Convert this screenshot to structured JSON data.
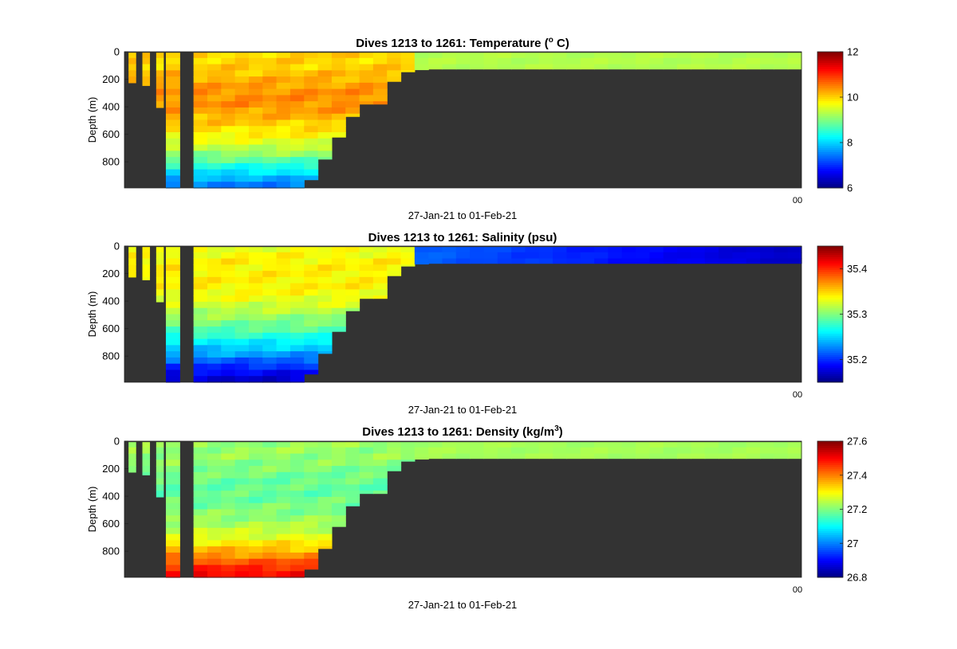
{
  "figure": {
    "background_color": "#ffffff",
    "mask_color": "#333333",
    "colormap": "jet"
  },
  "chart_data": [
    {
      "type": "heatmap",
      "title": "Dives 1213 to 1261: Temperature (",
      "title_superscript": "o",
      "title_after_superscript": " C)",
      "ylabel": "Depth (m)",
      "xlabel": "27-Jan-21 to 01-Feb-21",
      "x_tick_overlap_text": "00",
      "yticks": [
        "0",
        "200",
        "400",
        "600",
        "800"
      ],
      "ylim": [
        0,
        990
      ],
      "y_reversed": true,
      "clim": [
        6,
        12
      ],
      "colorbar_ticks": [
        "6",
        "8",
        "10",
        "12"
      ],
      "colorbar_tick_values": [
        6,
        8,
        10,
        12
      ],
      "max_depth_by_dive": [
        225,
        245,
        405,
        990,
        990,
        990,
        990,
        990,
        990,
        990,
        990,
        990,
        990,
        930,
        780,
        620,
        470,
        380,
        380,
        215,
        145,
        130,
        125,
        125,
        125,
        125,
        125,
        125,
        125,
        125,
        125,
        125,
        125,
        125,
        125,
        125,
        125,
        125,
        125,
        125,
        125,
        125,
        125,
        125,
        125,
        125,
        125,
        125,
        125
      ],
      "gap_dives": [
        4
      ],
      "profile_depths": [
        0,
        100,
        200,
        300,
        400,
        500,
        600,
        700,
        800,
        900,
        990
      ],
      "representative_profile_upper_warm_zone": [
        10.0,
        10.0,
        10.2,
        10.4,
        10.4,
        10.1,
        9.8,
        9.4,
        8.7,
        7.9,
        7.4
      ],
      "shelf_surface_layer_value": 9.3
    },
    {
      "type": "heatmap",
      "title": "Dives 1213 to 1261: Salinity (psu)",
      "ylabel": "Depth (m)",
      "xlabel": "27-Jan-21 to 01-Feb-21",
      "x_tick_overlap_text": "00",
      "yticks": [
        "0",
        "200",
        "400",
        "600",
        "800"
      ],
      "ylim": [
        0,
        990
      ],
      "y_reversed": true,
      "clim": [
        35.15,
        35.45
      ],
      "colorbar_ticks": [
        "35.2",
        "35.3",
        "35.4"
      ],
      "colorbar_tick_values": [
        35.2,
        35.3,
        35.4
      ],
      "profile_depths": [
        0,
        100,
        200,
        300,
        400,
        500,
        600,
        700,
        800,
        900,
        990
      ],
      "representative_profile": [
        35.33,
        35.34,
        35.34,
        35.34,
        35.33,
        35.31,
        35.29,
        35.26,
        35.23,
        35.19,
        35.17
      ],
      "shelf_surface_layer_range": [
        35.22,
        35.17
      ]
    },
    {
      "type": "heatmap",
      "title": "Dives 1213 to 1261: Density (kg/m",
      "title_superscript": "3",
      "title_after_superscript": ")",
      "ylabel": "Depth (m)",
      "xlabel": "27-Jan-21 to 01-Feb-21",
      "x_tick_overlap_text": "00",
      "yticks": [
        "0",
        "200",
        "400",
        "600",
        "800"
      ],
      "ylim": [
        0,
        990
      ],
      "y_reversed": true,
      "clim": [
        26.8,
        27.6
      ],
      "colorbar_ticks": [
        "26.8",
        "27",
        "27.2",
        "27.4",
        "27.6"
      ],
      "colorbar_tick_values": [
        26.8,
        27.0,
        27.2,
        27.4,
        27.6
      ],
      "profile_depths": [
        0,
        100,
        200,
        300,
        400,
        500,
        600,
        700,
        800,
        900,
        990
      ],
      "representative_profile": [
        27.22,
        27.22,
        27.2,
        27.18,
        27.18,
        27.2,
        27.23,
        27.28,
        27.36,
        27.45,
        27.52
      ],
      "shelf_surface_layer_value": 27.23
    }
  ]
}
